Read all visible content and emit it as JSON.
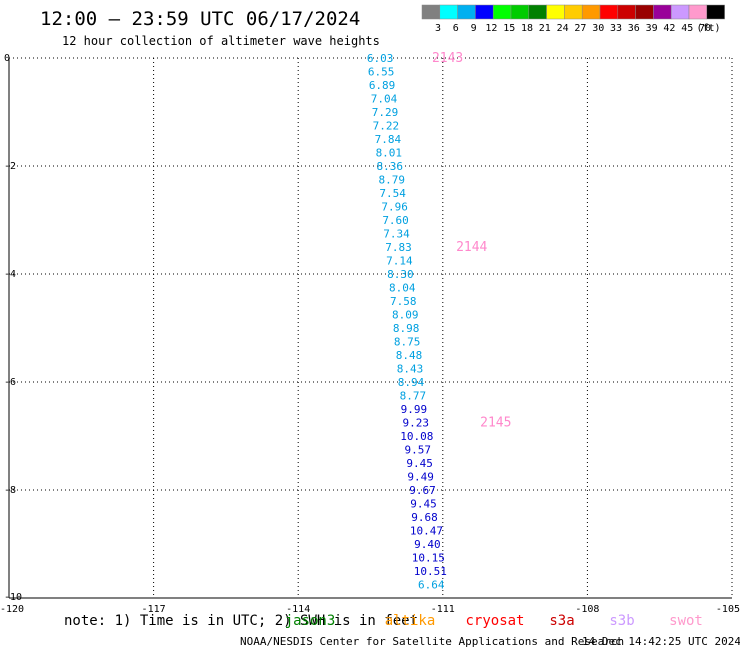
{
  "chart_data": {
    "type": "scatter",
    "title": "12:00 – 23:59 UTC 06/17/2024",
    "subtitle": "12 hour collection of altimeter wave heights",
    "xlabel": "",
    "ylabel": "",
    "xlim": [
      -120,
      -105
    ],
    "ylim": [
      -10,
      0
    ],
    "x_ticks": [
      -120,
      -117,
      -114,
      -111,
      -108,
      -105
    ],
    "x_tick_labels": [
      "-120",
      "-117",
      "-114",
      "-111",
      "-108",
      "-105"
    ],
    "y_ticks": [
      0,
      -2,
      -4,
      -6,
      -8,
      -10
    ],
    "y_tick_labels": [
      "0",
      "-2",
      "-4",
      "-6",
      "-8",
      "-10"
    ],
    "grid": true,
    "legend": {
      "placement": "top-right",
      "unit_label": "(ft)",
      "bins": [
        {
          "label": "3",
          "color": "#808080"
        },
        {
          "label": "6",
          "color": "#00ffff"
        },
        {
          "label": "9",
          "color": "#00b0f0"
        },
        {
          "label": "12",
          "color": "#0000ff"
        },
        {
          "label": "15",
          "color": "#00ff00"
        },
        {
          "label": "18",
          "color": "#00cc00"
        },
        {
          "label": "21",
          "color": "#008000"
        },
        {
          "label": "24",
          "color": "#ffff00"
        },
        {
          "label": "27",
          "color": "#ffcc00"
        },
        {
          "label": "30",
          "color": "#ff9900"
        },
        {
          "label": "33",
          "color": "#ff0000"
        },
        {
          "label": "36",
          "color": "#cc0000"
        },
        {
          "label": "39",
          "color": "#990000"
        },
        {
          "label": "42",
          "color": "#990099"
        },
        {
          "label": "45",
          "color": "#cc99ff"
        },
        {
          "label": "70",
          "color": "#ff99cc"
        },
        {
          "label": "",
          "color": "#000000"
        }
      ]
    },
    "series": [
      {
        "points": [
          {
            "x": -112.3,
            "y": 0.0,
            "label": "6.03",
            "color": "#00a0e0"
          },
          {
            "x": -112.28,
            "y": -0.25,
            "label": "6.55",
            "color": "#00a0e0"
          },
          {
            "x": -112.26,
            "y": -0.5,
            "label": "6.89",
            "color": "#00a0e0"
          },
          {
            "x": -112.22,
            "y": -0.75,
            "label": "7.04",
            "color": "#00a0e0"
          },
          {
            "x": -112.2,
            "y": -1.0,
            "label": "7.29",
            "color": "#00a0e0"
          },
          {
            "x": -112.18,
            "y": -1.25,
            "label": "7.22",
            "color": "#00a0e0"
          },
          {
            "x": -112.14,
            "y": -1.5,
            "label": "7.84",
            "color": "#00a0e0"
          },
          {
            "x": -112.12,
            "y": -1.75,
            "label": "8.01",
            "color": "#00a0e0"
          },
          {
            "x": -112.1,
            "y": -2.0,
            "label": "8.36",
            "color": "#00a0e0"
          },
          {
            "x": -112.06,
            "y": -2.25,
            "label": "8.79",
            "color": "#00a0e0"
          },
          {
            "x": -112.04,
            "y": -2.5,
            "label": "7.54",
            "color": "#00a0e0"
          },
          {
            "x": -112.0,
            "y": -2.75,
            "label": "7.96",
            "color": "#00a0e0"
          },
          {
            "x": -111.98,
            "y": -3.0,
            "label": "7.60",
            "color": "#00a0e0"
          },
          {
            "x": -111.96,
            "y": -3.25,
            "label": "7.34",
            "color": "#00a0e0"
          },
          {
            "x": -111.92,
            "y": -3.5,
            "label": "7.83",
            "color": "#00a0e0"
          },
          {
            "x": -111.9,
            "y": -3.75,
            "label": "7.14",
            "color": "#00a0e0"
          },
          {
            "x": -111.88,
            "y": -4.0,
            "label": "8.30",
            "color": "#00a0e0"
          },
          {
            "x": -111.84,
            "y": -4.25,
            "label": "8.04",
            "color": "#00a0e0"
          },
          {
            "x": -111.82,
            "y": -4.5,
            "label": "7.58",
            "color": "#00a0e0"
          },
          {
            "x": -111.78,
            "y": -4.75,
            "label": "8.09",
            "color": "#00a0e0"
          },
          {
            "x": -111.76,
            "y": -5.0,
            "label": "8.98",
            "color": "#00a0e0"
          },
          {
            "x": -111.74,
            "y": -5.25,
            "label": "8.75",
            "color": "#00a0e0"
          },
          {
            "x": -111.7,
            "y": -5.5,
            "label": "8.48",
            "color": "#00a0e0"
          },
          {
            "x": -111.68,
            "y": -5.75,
            "label": "8.43",
            "color": "#00a0e0"
          },
          {
            "x": -111.66,
            "y": -6.0,
            "label": "8.94",
            "color": "#00a0e0"
          },
          {
            "x": -111.62,
            "y": -6.25,
            "label": "8.77",
            "color": "#00a0e0"
          },
          {
            "x": -111.6,
            "y": -6.5,
            "label": "9.99",
            "color": "#0000cc"
          },
          {
            "x": -111.56,
            "y": -6.75,
            "label": "9.23",
            "color": "#0000cc"
          },
          {
            "x": -111.54,
            "y": -7.0,
            "label": "10.08",
            "color": "#0000cc"
          },
          {
            "x": -111.52,
            "y": -7.25,
            "label": "9.57",
            "color": "#0000cc"
          },
          {
            "x": -111.48,
            "y": -7.5,
            "label": "9.45",
            "color": "#0000cc"
          },
          {
            "x": -111.46,
            "y": -7.75,
            "label": "9.49",
            "color": "#0000cc"
          },
          {
            "x": -111.42,
            "y": -8.0,
            "label": "9.67",
            "color": "#0000cc"
          },
          {
            "x": -111.4,
            "y": -8.25,
            "label": "9.45",
            "color": "#0000cc"
          },
          {
            "x": -111.38,
            "y": -8.5,
            "label": "9.68",
            "color": "#0000cc"
          },
          {
            "x": -111.34,
            "y": -8.75,
            "label": "10.47",
            "color": "#0000cc"
          },
          {
            "x": -111.32,
            "y": -9.0,
            "label": "9.40",
            "color": "#0000cc"
          },
          {
            "x": -111.3,
            "y": -9.25,
            "label": "10.15",
            "color": "#0000cc"
          },
          {
            "x": -111.26,
            "y": -9.5,
            "label": "10.51",
            "color": "#0000cc"
          },
          {
            "x": -111.24,
            "y": -9.75,
            "label": "6.64",
            "color": "#00a0e0"
          }
        ]
      }
    ],
    "annotations": [
      {
        "text": "2143",
        "x": -110.9,
        "y": 0.0,
        "color": "#ff88cc"
      },
      {
        "text": "2144",
        "x": -110.4,
        "y": -3.5,
        "color": "#ff88cc"
      },
      {
        "text": "2145",
        "x": -109.9,
        "y": -6.75,
        "color": "#ff88cc"
      }
    ]
  },
  "footer": {
    "note": "note:  1) Time is in UTC; 2) SWH is in feet",
    "satellites": [
      {
        "name": "jason3",
        "color": "#008000"
      },
      {
        "name": "altika",
        "color": "#ff9900"
      },
      {
        "name": "cryosat",
        "color": "#ff0000"
      },
      {
        "name": "s3a",
        "color": "#cc0000"
      },
      {
        "name": "s3b",
        "color": "#cc99ff"
      },
      {
        "name": "swot",
        "color": "#ff99cc"
      }
    ],
    "credit": "NOAA/NESDIS Center for Satellite Applications and Research",
    "timestamp": "14 Dec 14:42:25 UTC 2024"
  }
}
